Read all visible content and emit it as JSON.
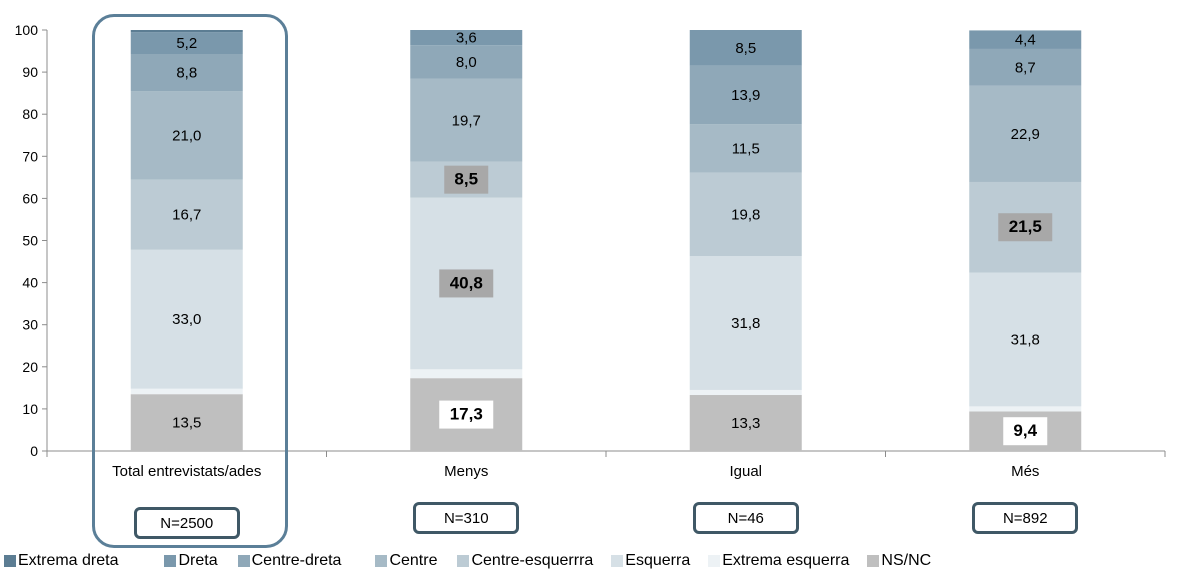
{
  "chart_data": {
    "type": "bar",
    "stacked": true,
    "categories": [
      "Total entrevistats/ades",
      "Menys",
      "Igual",
      "Més"
    ],
    "n_labels": [
      "N=2500",
      "N=310",
      "N=46",
      "N=892"
    ],
    "ylim": [
      0,
      100
    ],
    "yticks": [
      "0",
      "10",
      "20",
      "30",
      "40",
      "50",
      "60",
      "70",
      "80",
      "90",
      "100"
    ],
    "series": [
      {
        "name": "NS/NC",
        "color": "#bfbfbf",
        "values": [
          13.5,
          17.3,
          13.3,
          9.4
        ],
        "labels": [
          "13,5",
          "17,3",
          "13,3",
          "9,4"
        ],
        "bold": [
          false,
          true,
          false,
          true
        ]
      },
      {
        "name": "Extrema esquerra",
        "color": "#edf2f5",
        "values": [
          1.3,
          2.1,
          1.2,
          1.2
        ],
        "labels": [
          "",
          "",
          "",
          ""
        ],
        "bold": [
          false,
          false,
          false,
          false
        ]
      },
      {
        "name": "Esquerra",
        "color": "#d6e0e6",
        "values": [
          33.0,
          40.8,
          31.8,
          31.8
        ],
        "labels": [
          "33,0",
          "40,8",
          "31,8",
          "31,8"
        ],
        "bold": [
          false,
          true,
          false,
          false
        ]
      },
      {
        "name": "Centre-esquerrra",
        "color": "#bccbd4",
        "values": [
          16.7,
          8.5,
          19.8,
          21.5
        ],
        "labels": [
          "16,7",
          "8,5",
          "19,8",
          "21,5"
        ],
        "bold": [
          false,
          true,
          false,
          true
        ]
      },
      {
        "name": "Centre",
        "color": "#a6bac6",
        "values": [
          21.0,
          19.7,
          11.5,
          22.9
        ],
        "labels": [
          "21,0",
          "19,7",
          "11,5",
          "22,9"
        ],
        "bold": [
          false,
          false,
          false,
          false
        ]
      },
      {
        "name": "Centre-dreta",
        "color": "#8fa8b8",
        "values": [
          8.8,
          8.0,
          13.9,
          8.7
        ],
        "labels": [
          "8,8",
          "8,0",
          "13,9",
          "8,7"
        ],
        "bold": [
          false,
          false,
          false,
          false
        ]
      },
      {
        "name": "Dreta",
        "color": "#7a98ac",
        "values": [
          5.2,
          3.6,
          8.5,
          4.4
        ],
        "labels": [
          "5,2",
          "3,6",
          "8,5",
          "4,4"
        ],
        "bold": [
          false,
          false,
          false,
          false
        ]
      },
      {
        "name": "Extrema dreta",
        "color": "#5c7d93",
        "values": [
          0.5,
          0.0,
          0.0,
          0.0
        ],
        "labels": [
          "",
          "",
          "",
          ""
        ],
        "bold": [
          false,
          false,
          false,
          false
        ]
      }
    ],
    "legend_order": [
      "Extrema dreta",
      "Dreta",
      "Centre-dreta",
      "Centre",
      "Centre-esquerrra",
      "Esquerra",
      "Extrema esquerra",
      "NS/NC"
    ],
    "legend_position": "bottom",
    "grid": false
  }
}
